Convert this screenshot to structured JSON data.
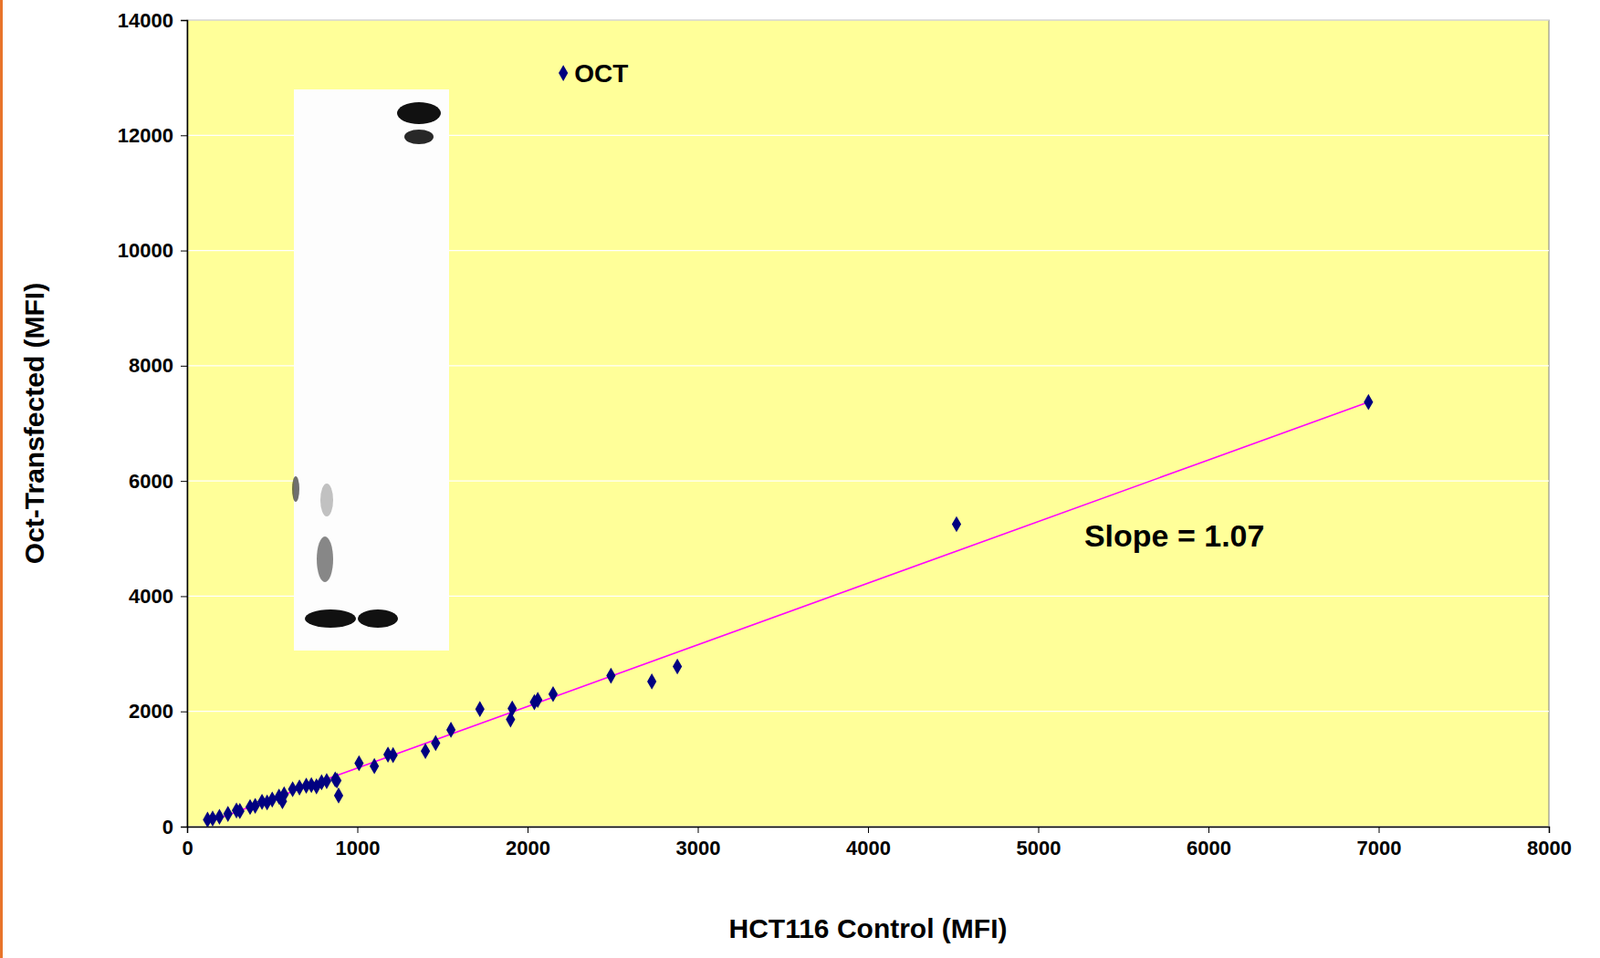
{
  "chart_data": {
    "type": "scatter",
    "x_label": "HCT116  Control (MFI)",
    "y_label": "Oct-Transfected (MFI)",
    "xlim": [
      0,
      8000
    ],
    "xticks": [
      0,
      1000,
      2000,
      3000,
      4000,
      5000,
      6000,
      7000,
      8000
    ],
    "ylim": [
      0,
      14000
    ],
    "yticks": [
      0,
      2000,
      4000,
      6000,
      8000,
      10000,
      12000,
      14000
    ],
    "grid": true,
    "series": [
      {
        "type": "scatter",
        "color": "#000080",
        "marker": "diamond",
        "x": [
          120,
          150,
          190,
          240,
          290,
          310,
          370,
          400,
          440,
          470,
          500,
          540,
          560,
          570,
          620,
          660,
          700,
          730,
          760,
          790,
          820,
          870,
          890,
          880,
          1010,
          1100,
          1180,
          1210,
          1400,
          1460,
          1550,
          1720,
          1900,
          1910,
          2040,
          2060,
          2150,
          2490,
          2730,
          2880,
          4520,
          6940,
          2210
        ],
        "values": [
          120,
          140,
          170,
          220,
          280,
          270,
          340,
          360,
          430,
          420,
          470,
          520,
          440,
          560,
          650,
          680,
          710,
          720,
          700,
          770,
          790,
          820,
          540,
          800,
          1100,
          1050,
          1250,
          1240,
          1310,
          1450,
          1680,
          2040,
          1860,
          2050,
          2160,
          2200,
          2300,
          2620,
          2520,
          2780,
          5250,
          7370,
          13080
        ]
      },
      {
        "type": "line",
        "color": "#ff00ff",
        "line_style": "solid",
        "x": [
          120,
          6950
        ],
        "values": [
          75,
          7380
        ]
      }
    ],
    "annotations": [
      {
        "text": "OCT",
        "x": 2210,
        "y": 13080
      },
      {
        "text": "Slope = 1.07",
        "x": 5800,
        "y": 5050
      }
    ]
  }
}
